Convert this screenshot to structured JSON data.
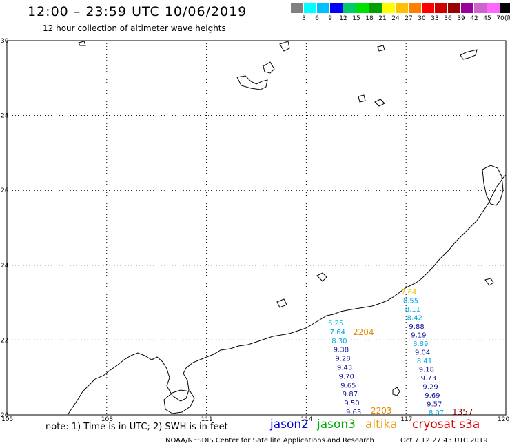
{
  "header": {
    "title": "12:00 – 23:59 UTC 10/06/2019",
    "subtitle": "12 hour collection of altimeter wave heights"
  },
  "legend": {
    "colors": [
      "#808080",
      "#00ffff",
      "#00bfff",
      "#0000ff",
      "#00cc66",
      "#00e000",
      "#00a000",
      "#ffff00",
      "#ffc000",
      "#ff8000",
      "#ff0000",
      "#cc0000",
      "#990000",
      "#990099",
      "#cc66cc",
      "#ff66ff",
      "#000000"
    ],
    "levels": [
      "3",
      "6",
      "9",
      "12",
      "15",
      "18",
      "21",
      "24",
      "27",
      "30",
      "33",
      "36",
      "39",
      "42",
      "45",
      "70"
    ],
    "unit": "(ft)"
  },
  "axes": {
    "lat_ticks": [
      "30",
      "28",
      "26",
      "24",
      "22",
      "20"
    ],
    "lon_ticks": [
      "105",
      "108",
      "111",
      "114",
      "117",
      "120"
    ]
  },
  "tracks": {
    "west": {
      "values": [
        "6.25",
        "7.64",
        "8.30",
        "9.38",
        "9.28",
        "9.43",
        "9.70",
        "9.65",
        "9.87",
        "9.50",
        "9.63"
      ],
      "colors": [
        "#00cfcf",
        "#00a8e0",
        "#00a8e0",
        "#1010a0",
        "#1010a0",
        "#1010a0",
        "#1010a0",
        "#1010a0",
        "#1010a0",
        "#1010a0",
        "#1010a0"
      ]
    },
    "east": {
      "values": [
        "7.64",
        "8.55",
        "8.11",
        "8.42",
        "9.88",
        "9.19",
        "8.89",
        "9.04",
        "8.41",
        "9.18",
        "9.73",
        "9.29",
        "9.69",
        "9.57",
        "8.07"
      ],
      "colors": [
        "#f0c000",
        "#00a8e0",
        "#00a8e0",
        "#00a8e0",
        "#1010a0",
        "#1010a0",
        "#00a8e0",
        "#1010a0",
        "#00a8e0",
        "#1010a0",
        "#1010a0",
        "#1010a0",
        "#1010a0",
        "#1010a0",
        "#00a8e0"
      ]
    },
    "labels": [
      {
        "text": "2204",
        "color": "#e08a00"
      },
      {
        "text": "2203",
        "color": "#e08a00"
      },
      {
        "text": "1357",
        "color": "#800000"
      }
    ]
  },
  "footer": {
    "note": "note: 1) Time is in UTC; 2) SWH is in feet",
    "missions": [
      {
        "name": "jason2",
        "color": "#0000dd"
      },
      {
        "name": "jason3",
        "color": "#00aa00"
      },
      {
        "name": "altika",
        "color": "#ee9900"
      },
      {
        "name": "cryosat s3a",
        "color": "#dd0000"
      }
    ],
    "credit": "NOAA/NESDIS Center for Satellite Applications and Research",
    "timestamp": "Oct  7 12:27:43 UTC 2019"
  }
}
